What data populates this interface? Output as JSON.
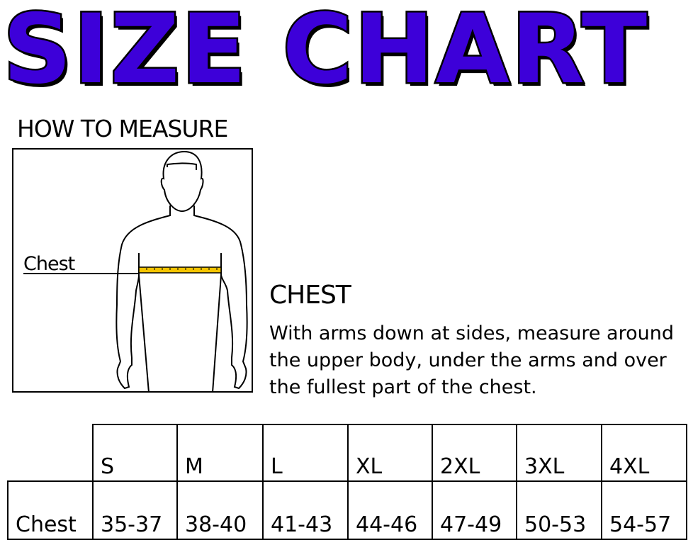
{
  "title": "SIZE CHART",
  "colors": {
    "title_fill": "#3d00d9",
    "tape": "#f5c400"
  },
  "how_to_measure": {
    "heading": "HOW TO MEASURE",
    "figure_label": "Chest"
  },
  "chest": {
    "heading": "CHEST",
    "description": "With arms down at sides, measure around the upper body, under the arms and over the fullest part of the chest."
  },
  "table": {
    "sizes": [
      "S",
      "M",
      "L",
      "XL",
      "2XL",
      "3XL",
      "4XL"
    ],
    "rows": [
      {
        "label": "Chest",
        "values": [
          "35-37",
          "38-40",
          "41-43",
          "44-46",
          "47-49",
          "50-53",
          "54-57"
        ]
      }
    ]
  }
}
